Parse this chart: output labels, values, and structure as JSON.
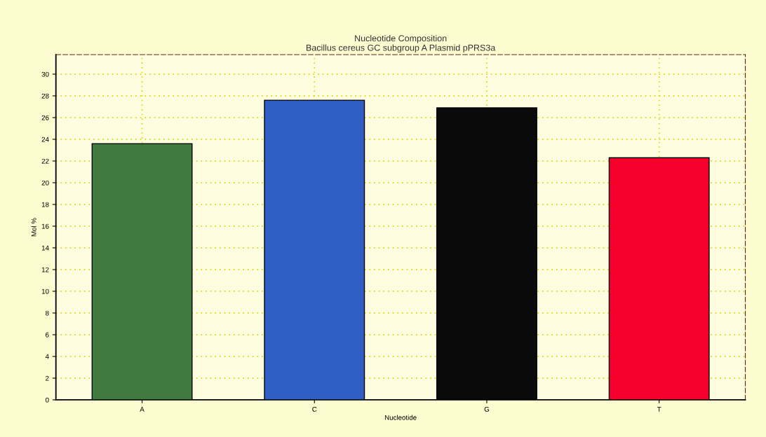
{
  "chart_data": {
    "type": "bar",
    "title": "Nucleotide Composition\nBacillus cereus GC subgroup A Plasmid pPRS3a",
    "xlabel": "Nucleotide",
    "ylabel": "Mol %",
    "categories": [
      "A",
      "C",
      "G",
      "T"
    ],
    "values": [
      23.6,
      27.6,
      26.9,
      22.3
    ],
    "colors": [
      "#3f7a3f",
      "#2f5fc4",
      "#0a0a0a",
      "#f5002a"
    ],
    "ylim": [
      0,
      31.8
    ],
    "yticks": [
      0,
      2,
      4,
      6,
      8,
      10,
      12,
      14,
      16,
      18,
      20,
      22,
      24,
      26,
      28,
      30
    ],
    "grid": true
  }
}
